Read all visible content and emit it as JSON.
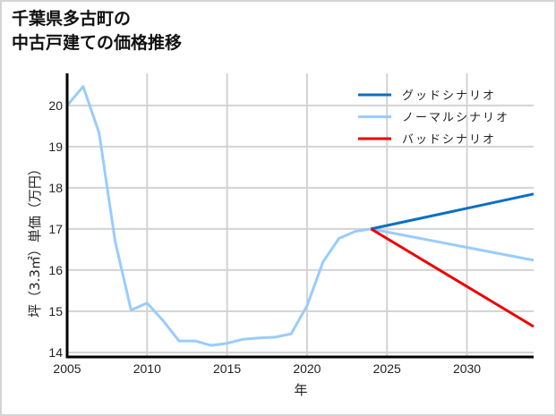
{
  "title": {
    "line1": "千葉県多古町の",
    "line2": "中古戸建ての価格推移"
  },
  "chart_data": {
    "type": "line",
    "title": "千葉県多古町の中古戸建ての価格推移",
    "xlabel": "年",
    "ylabel": "坪（3.3㎡）単価（万円）",
    "xlim": [
      2005,
      2034.17
    ],
    "ylim": [
      13.89,
      20.78
    ],
    "xticks": [
      2005,
      2010,
      2015,
      2020,
      2025,
      2030
    ],
    "yticks": [
      14,
      15,
      16,
      17,
      18,
      19,
      20
    ],
    "grid": true,
    "legend_position": "upper right",
    "series": [
      {
        "name": "グッドシナリオ",
        "color": "#0a6fc2",
        "x": [
          2024,
          2034.17
        ],
        "y": [
          17.0,
          17.85
        ]
      },
      {
        "name": "ノーマルシナリオ",
        "color": "#99ccff",
        "x": [
          2005,
          2006,
          2007,
          2008,
          2009,
          2010,
          2011,
          2012,
          2013,
          2014,
          2015,
          2016,
          2017,
          2018,
          2019,
          2020,
          2021,
          2022,
          2023,
          2024,
          2034.17
        ],
        "y": [
          20.0,
          20.46,
          19.33,
          16.7,
          15.03,
          15.2,
          14.77,
          14.28,
          14.28,
          14.17,
          14.22,
          14.32,
          14.35,
          14.37,
          14.45,
          15.13,
          16.2,
          16.77,
          16.94,
          17.0,
          16.24
        ]
      },
      {
        "name": "バッドシナリオ",
        "color": "#ee0000",
        "x": [
          2024,
          2034.17
        ],
        "y": [
          17.0,
          14.63
        ]
      }
    ]
  }
}
